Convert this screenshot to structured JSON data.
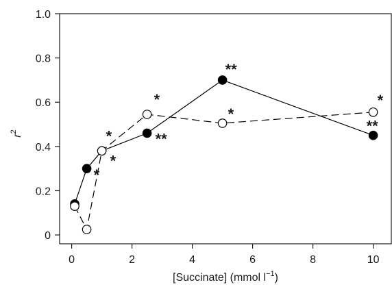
{
  "chart_data": {
    "type": "line",
    "xlabel_main": "[Succinate] (mmol l",
    "xlabel_sup": "−1",
    "xlabel_end": ")",
    "ylabel_main": "r",
    "ylabel_sup": "2",
    "xlim": [
      -0.4,
      10.6
    ],
    "ylim": [
      -0.04,
      1.0
    ],
    "xticks": [
      0,
      2,
      4,
      6,
      8,
      10
    ],
    "xtick_labels": [
      "0",
      "2",
      "4",
      "6",
      "8",
      "10"
    ],
    "yticks": [
      0,
      0.2,
      0.4,
      0.6,
      0.8,
      1.0
    ],
    "ytick_labels": [
      "0",
      "0.2",
      "0.4",
      "0.6",
      "0.8",
      "1.0"
    ],
    "grid": false,
    "series": [
      {
        "style": "solid-line filled-circle",
        "color": "#000000",
        "x": [
          0.1,
          0.5,
          1.0,
          2.5,
          5.0,
          10.0
        ],
        "y": [
          0.14,
          0.3,
          0.38,
          0.46,
          0.7,
          0.45
        ],
        "significance": [
          "",
          "*",
          "*",
          "**",
          "**",
          "**"
        ]
      },
      {
        "style": "dashed-line open-circle",
        "color": "#000000",
        "x": [
          0.1,
          0.5,
          1.0,
          2.5,
          5.0,
          10.0
        ],
        "y": [
          0.13,
          0.025,
          0.38,
          0.545,
          0.505,
          0.555
        ],
        "significance": [
          "",
          "",
          "*",
          "*",
          "*",
          "*"
        ]
      }
    ]
  }
}
